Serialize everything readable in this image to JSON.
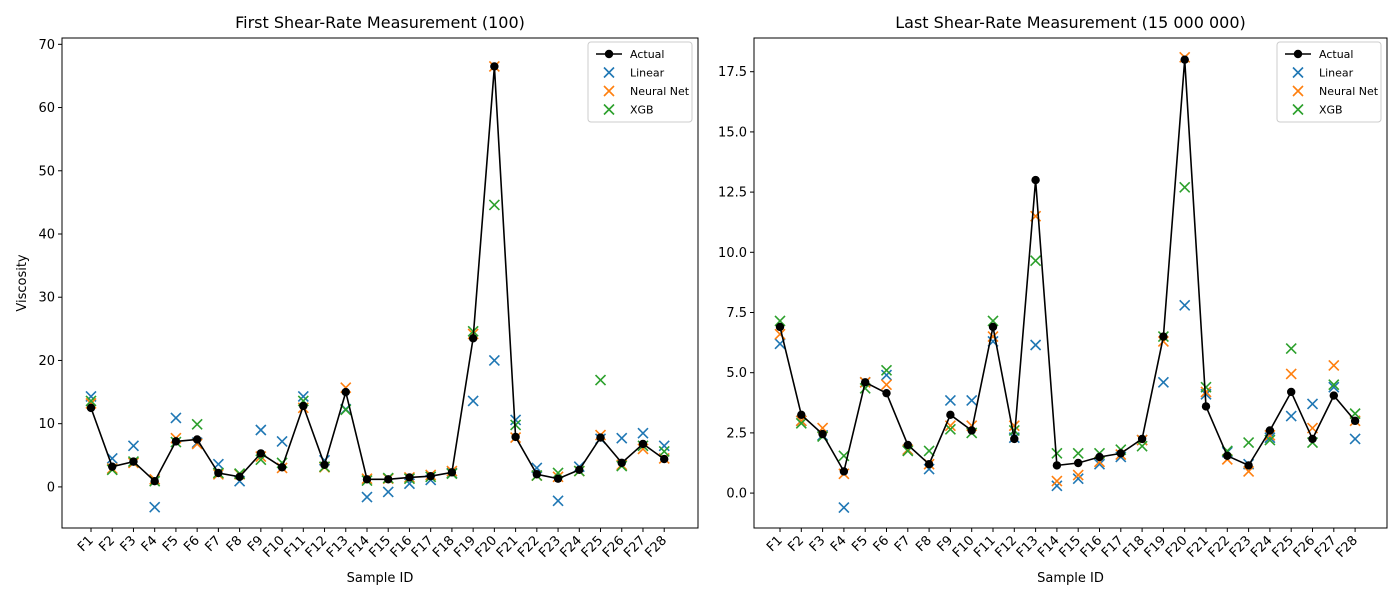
{
  "colors": {
    "Actual": "#000000",
    "Linear": "#1f77b4",
    "Neural Net": "#ff7f0e",
    "XGB": "#2ca02c"
  },
  "chart_data": [
    {
      "type": "line",
      "title": "First Shear-Rate Measurement (100)",
      "xlabel": "Sample ID",
      "ylabel": "Viscosity",
      "ylim": [
        -6.5,
        71
      ],
      "yticks": [
        0,
        10,
        20,
        30,
        40,
        50,
        60,
        70
      ],
      "ytick_labels": [
        "0",
        "10",
        "20",
        "30",
        "40",
        "50",
        "60",
        "70"
      ],
      "grid": false,
      "legend": "top-right",
      "categories": [
        "F1",
        "F2",
        "F3",
        "F4",
        "F5",
        "F6",
        "F7",
        "F8",
        "F9",
        "F10",
        "F11",
        "F12",
        "F13",
        "F14",
        "F15",
        "F16",
        "F17",
        "F18",
        "F19",
        "F20",
        "F21",
        "F22",
        "F23",
        "F24",
        "F25",
        "F26",
        "F27",
        "F28"
      ],
      "series": [
        {
          "name": "Actual",
          "style": "line-marker",
          "values": [
            12.5,
            3.2,
            4.0,
            0.9,
            7.2,
            7.5,
            2.2,
            1.6,
            5.3,
            3.1,
            12.8,
            3.5,
            15.0,
            1.2,
            1.2,
            1.5,
            1.7,
            2.3,
            23.5,
            66.5,
            7.9,
            2.0,
            1.3,
            2.7,
            7.8,
            3.8,
            6.8,
            4.4
          ]
        },
        {
          "name": "Linear",
          "style": "x",
          "values": [
            14.3,
            4.5,
            6.5,
            -3.2,
            10.9,
            7.0,
            3.6,
            0.9,
            9.0,
            7.2,
            14.3,
            4.2,
            12.3,
            -1.6,
            -0.8,
            0.5,
            1.1,
            2.2,
            13.6,
            20.0,
            10.6,
            3.0,
            -2.2,
            3.2,
            7.6,
            7.7,
            8.5,
            6.5
          ]
        },
        {
          "name": "Neural Net",
          "style": "x",
          "values": [
            13.2,
            2.9,
            3.8,
            1.2,
            7.7,
            6.8,
            2.0,
            2.0,
            4.8,
            3.0,
            12.5,
            3.1,
            15.7,
            1.3,
            1.3,
            1.5,
            1.9,
            2.5,
            24.2,
            66.5,
            7.8,
            1.8,
            1.6,
            2.5,
            8.2,
            3.5,
            6.0,
            4.5
          ]
        },
        {
          "name": "XGB",
          "style": "x",
          "values": [
            13.6,
            2.7,
            4.0,
            0.9,
            7.1,
            9.9,
            2.2,
            2.1,
            4.3,
            3.8,
            13.6,
            3.2,
            12.2,
            1.0,
            1.4,
            1.3,
            1.6,
            2.1,
            24.6,
            44.6,
            9.8,
            1.8,
            2.2,
            2.5,
            16.9,
            3.3,
            6.5,
            5.6
          ]
        }
      ]
    },
    {
      "type": "line",
      "title": "Last Shear-Rate Measurement (15 000 000)",
      "xlabel": "Sample ID",
      "ylabel": "",
      "ylim": [
        -1.45,
        18.9
      ],
      "yticks": [
        0,
        2.5,
        5,
        7.5,
        10,
        12.5,
        15,
        17.5
      ],
      "ytick_labels": [
        "0.0",
        "2.5",
        "5.0",
        "7.5",
        "10.0",
        "12.5",
        "15.0",
        "17.5"
      ],
      "grid": false,
      "legend": "top-right",
      "categories": [
        "F1",
        "F2",
        "F3",
        "F4",
        "F5",
        "F6",
        "F7",
        "F8",
        "F9",
        "F10",
        "F11",
        "F12",
        "F13",
        "F14",
        "F15",
        "F16",
        "F17",
        "F18",
        "F19",
        "F20",
        "F21",
        "F22",
        "F23",
        "F24",
        "F25",
        "F26",
        "F27",
        "F28"
      ],
      "series": [
        {
          "name": "Actual",
          "style": "line-marker",
          "values": [
            6.9,
            3.25,
            2.45,
            0.9,
            4.6,
            4.15,
            2.0,
            1.2,
            3.25,
            2.6,
            6.9,
            2.25,
            13.0,
            1.15,
            1.25,
            1.5,
            1.65,
            2.25,
            6.5,
            18.0,
            3.6,
            1.55,
            1.15,
            2.6,
            4.2,
            2.25,
            4.05,
            3.0
          ]
        },
        {
          "name": "Linear",
          "style": "x",
          "values": [
            6.2,
            3.0,
            2.4,
            -0.6,
            4.6,
            4.9,
            1.8,
            1.0,
            3.85,
            3.85,
            6.3,
            2.3,
            6.15,
            0.3,
            0.6,
            1.2,
            1.5,
            2.2,
            4.6,
            7.8,
            4.1,
            1.7,
            1.2,
            2.3,
            3.2,
            3.7,
            4.4,
            2.25
          ]
        },
        {
          "name": "Neural Net",
          "style": "x",
          "values": [
            6.6,
            3.0,
            2.7,
            0.8,
            4.6,
            4.5,
            1.8,
            1.2,
            2.8,
            2.8,
            6.5,
            2.8,
            11.5,
            0.5,
            0.75,
            1.3,
            1.6,
            2.2,
            6.3,
            18.1,
            4.2,
            1.4,
            0.9,
            2.4,
            4.95,
            2.7,
            5.3,
            3.0
          ]
        },
        {
          "name": "XGB",
          "style": "x",
          "values": [
            7.15,
            2.9,
            2.35,
            1.55,
            4.35,
            5.1,
            1.75,
            1.75,
            2.65,
            2.5,
            7.15,
            2.6,
            9.65,
            1.65,
            1.65,
            1.65,
            1.8,
            1.95,
            6.5,
            12.7,
            4.4,
            1.75,
            2.1,
            2.2,
            6.0,
            2.1,
            4.5,
            3.3
          ]
        }
      ]
    }
  ]
}
